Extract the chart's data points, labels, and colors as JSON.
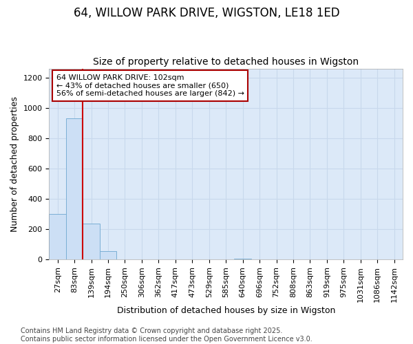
{
  "title": "64, WILLOW PARK DRIVE, WIGSTON, LE18 1ED",
  "subtitle": "Size of property relative to detached houses in Wigston",
  "xlabel": "Distribution of detached houses by size in Wigston",
  "ylabel": "Number of detached properties",
  "categories": [
    "27sqm",
    "83sqm",
    "139sqm",
    "194sqm",
    "250sqm",
    "306sqm",
    "362sqm",
    "417sqm",
    "473sqm",
    "529sqm",
    "585sqm",
    "640sqm",
    "696sqm",
    "752sqm",
    "808sqm",
    "863sqm",
    "919sqm",
    "975sqm",
    "1031sqm",
    "1086sqm",
    "1142sqm"
  ],
  "values": [
    300,
    930,
    235,
    55,
    0,
    0,
    0,
    0,
    0,
    0,
    0,
    5,
    0,
    0,
    0,
    0,
    0,
    0,
    0,
    0,
    0
  ],
  "bar_color": "#ccdff5",
  "bar_edge_color": "#7aafd4",
  "background_color": "#dce9f8",
  "grid_color": "#c8d8ec",
  "fig_background": "#ffffff",
  "annotation_text": "64 WILLOW PARK DRIVE: 102sqm\n← 43% of detached houses are smaller (650)\n56% of semi-detached houses are larger (842) →",
  "annotation_box_facecolor": "#ffffff",
  "annotation_box_edgecolor": "#aa0000",
  "vline_x": 1.5,
  "vline_color": "#cc0000",
  "ylim": [
    0,
    1260
  ],
  "yticks": [
    0,
    200,
    400,
    600,
    800,
    1000,
    1200
  ],
  "footer": "Contains HM Land Registry data © Crown copyright and database right 2025.\nContains public sector information licensed under the Open Government Licence v3.0.",
  "title_fontsize": 12,
  "subtitle_fontsize": 10,
  "axis_label_fontsize": 9,
  "tick_fontsize": 8,
  "footer_fontsize": 7,
  "annotation_fontsize": 8
}
